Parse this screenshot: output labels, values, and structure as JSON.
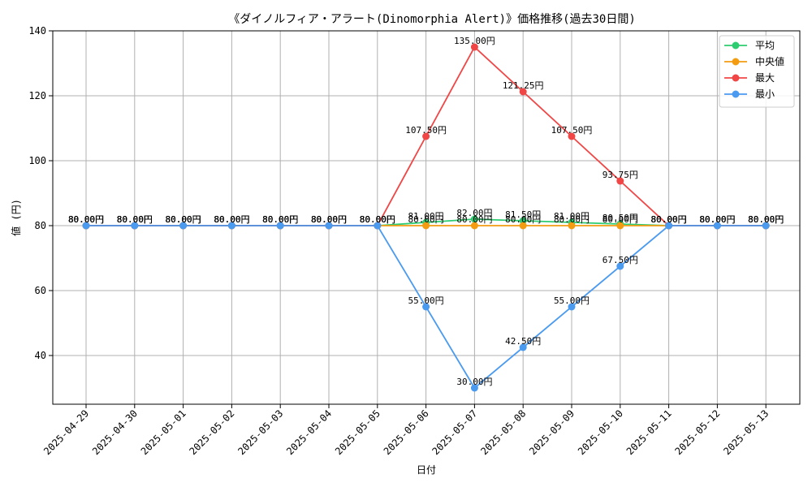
{
  "chart_data": {
    "type": "line",
    "title": "《ダイノルフィア・アラート(Dinomorphia Alert)》価格推移(過去30日間)",
    "xlabel": "日付",
    "ylabel": "値 (円)",
    "ylim": [
      25,
      140
    ],
    "yticks": [
      40,
      60,
      80,
      100,
      120,
      140
    ],
    "grid": true,
    "legend_position": "top-right",
    "label_suffix": "円",
    "categories": [
      "2025-04-29",
      "2025-04-30",
      "2025-05-01",
      "2025-05-02",
      "2025-05-03",
      "2025-05-04",
      "2025-05-05",
      "2025-05-06",
      "2025-05-07",
      "2025-05-08",
      "2025-05-09",
      "2025-05-10",
      "2025-05-11",
      "2025-05-12",
      "2025-05-13"
    ],
    "series": [
      {
        "name": "平均",
        "color": "#2ecc71",
        "values": [
          80,
          80,
          80,
          80,
          80,
          80,
          80,
          81,
          82,
          81.5,
          81,
          80.5,
          80,
          80,
          80
        ]
      },
      {
        "name": "中央値",
        "color": "#f39c12",
        "values": [
          80,
          80,
          80,
          80,
          80,
          80,
          80,
          80,
          80,
          80,
          80,
          80,
          80,
          80,
          80
        ]
      },
      {
        "name": "最大",
        "color": "#f04646",
        "values": [
          80,
          80,
          80,
          80,
          80,
          80,
          80,
          107.5,
          135,
          121.25,
          107.5,
          93.75,
          80,
          80,
          80
        ]
      },
      {
        "name": "最小",
        "color": "#4a9af0",
        "values": [
          80,
          80,
          80,
          80,
          80,
          80,
          80,
          55,
          30,
          42.5,
          55,
          67.5,
          80,
          80,
          80
        ]
      }
    ]
  }
}
